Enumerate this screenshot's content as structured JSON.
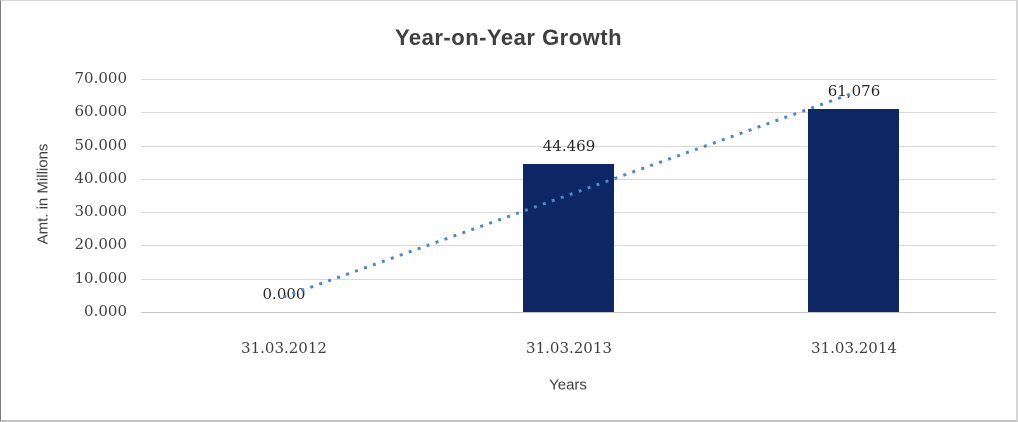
{
  "chart_data": {
    "type": "bar",
    "title": "Year-on-Year Growth",
    "xlabel": "Years",
    "ylabel": "Amt. in Millions",
    "categories": [
      "31.03.2012",
      "31.03.2013",
      "31.03.2014"
    ],
    "values": [
      0,
      44469,
      61076
    ],
    "data_labels": [
      "0.000",
      "44.469",
      "61,076"
    ],
    "ylim": [
      0,
      70000
    ],
    "ytick_step": 10000,
    "ytick_labels": [
      "0.000",
      "10.000",
      "20.000",
      "30.000",
      "40.000",
      "50.000",
      "60.000",
      "70.000"
    ],
    "grid": "horizontal-only",
    "legend": "none",
    "bar_color": "#0d2765",
    "trendline": {
      "type": "linear",
      "style": "dotted",
      "color": "#4f86c6"
    }
  }
}
